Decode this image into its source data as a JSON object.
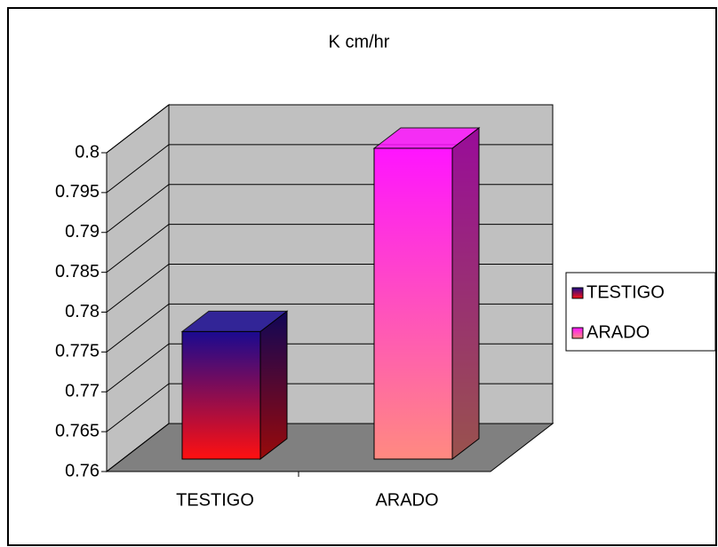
{
  "chart_data": {
    "type": "bar3d",
    "title": "K cm/hr",
    "categories": [
      "TESTIGO",
      "ARADO"
    ],
    "values": [
      0.776,
      0.799
    ],
    "gradients": [
      [
        "#1a0a90",
        "#ff1010"
      ],
      [
        "#ff14ff",
        "#ff8a80"
      ]
    ],
    "ylim": [
      0.76,
      0.8
    ],
    "yticks": [
      {
        "value": 0.76,
        "label": "0.76"
      },
      0.765,
      {
        "value": 0.77,
        "label": "0.77"
      },
      0.775,
      {
        "value": 0.78,
        "label": "0.78"
      },
      0.785,
      {
        "value": 0.79,
        "label": "0.79"
      },
      0.795,
      {
        "value": 0.8,
        "label": "0.8"
      }
    ],
    "grid": true,
    "legend": "right"
  }
}
